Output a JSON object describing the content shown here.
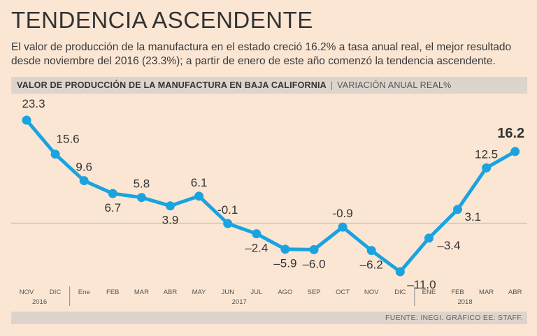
{
  "header": {
    "title": "TENDENCIA ASCENDENTE",
    "subtitle": "El valor de producción de la manufactura en el estado creció 16.2% a tasa anual real, el mejor resultado desde noviembre del 2016 (23.3%); a partir de enero de este año comenzó la tendencia ascendente."
  },
  "chart_header": {
    "main": "VALOR DE PRODUCCIÓN DE LA MANUFACTURA EN BAJA CALIFORNIA",
    "separator": "|",
    "sub": "VARIACIÓN ANUAL REAL%"
  },
  "footer": {
    "source": "FUENTE: INEGI. GRÁFICO EE: STAFF."
  },
  "chart_data": {
    "type": "line",
    "categories": [
      "NOV",
      "DIC",
      "Ene",
      "FEB",
      "MAR",
      "ABR",
      "MAY",
      "JUN",
      "JUL",
      "AGO",
      "SEP",
      "OCT",
      "NOV",
      "DIC",
      "ENE",
      "FEB",
      "MAR",
      "ABR"
    ],
    "year_groups": [
      {
        "label": "2016",
        "start": 0,
        "end": 1
      },
      {
        "label": "2017",
        "start": 2,
        "end": 13
      },
      {
        "label": "2018",
        "start": 14,
        "end": 17
      }
    ],
    "series": [
      {
        "values": [
          23.3,
          15.6,
          9.6,
          6.7,
          5.8,
          3.9,
          6.1,
          -0.1,
          -2.4,
          -5.9,
          -6.0,
          -0.9,
          -6.2,
          -11.0,
          -3.4,
          3.1,
          12.5,
          16.2
        ],
        "labels": [
          "23.3",
          "15.6",
          "9.6",
          "6.7",
          "5.8",
          "3.9",
          "6.1",
          "-0.1",
          "–2.4",
          "–5.9",
          "–6.0",
          "-0.9",
          "–6.2",
          "–11.0",
          "–3.4",
          "3.1",
          "12.5",
          "16.2"
        ]
      }
    ],
    "label_position": [
      "above",
      "above",
      "above",
      "below",
      "above",
      "below",
      "above",
      "above",
      "below",
      "below",
      "below",
      "above",
      "below",
      "right",
      "right",
      "right",
      "above",
      "above"
    ],
    "highlight_last": true,
    "baseline": 0,
    "ylim": [
      -12,
      25
    ],
    "grid": false,
    "line_color": "#1ba3e0",
    "baseline_color": "#bdb3aa",
    "text_color": "#333333"
  }
}
